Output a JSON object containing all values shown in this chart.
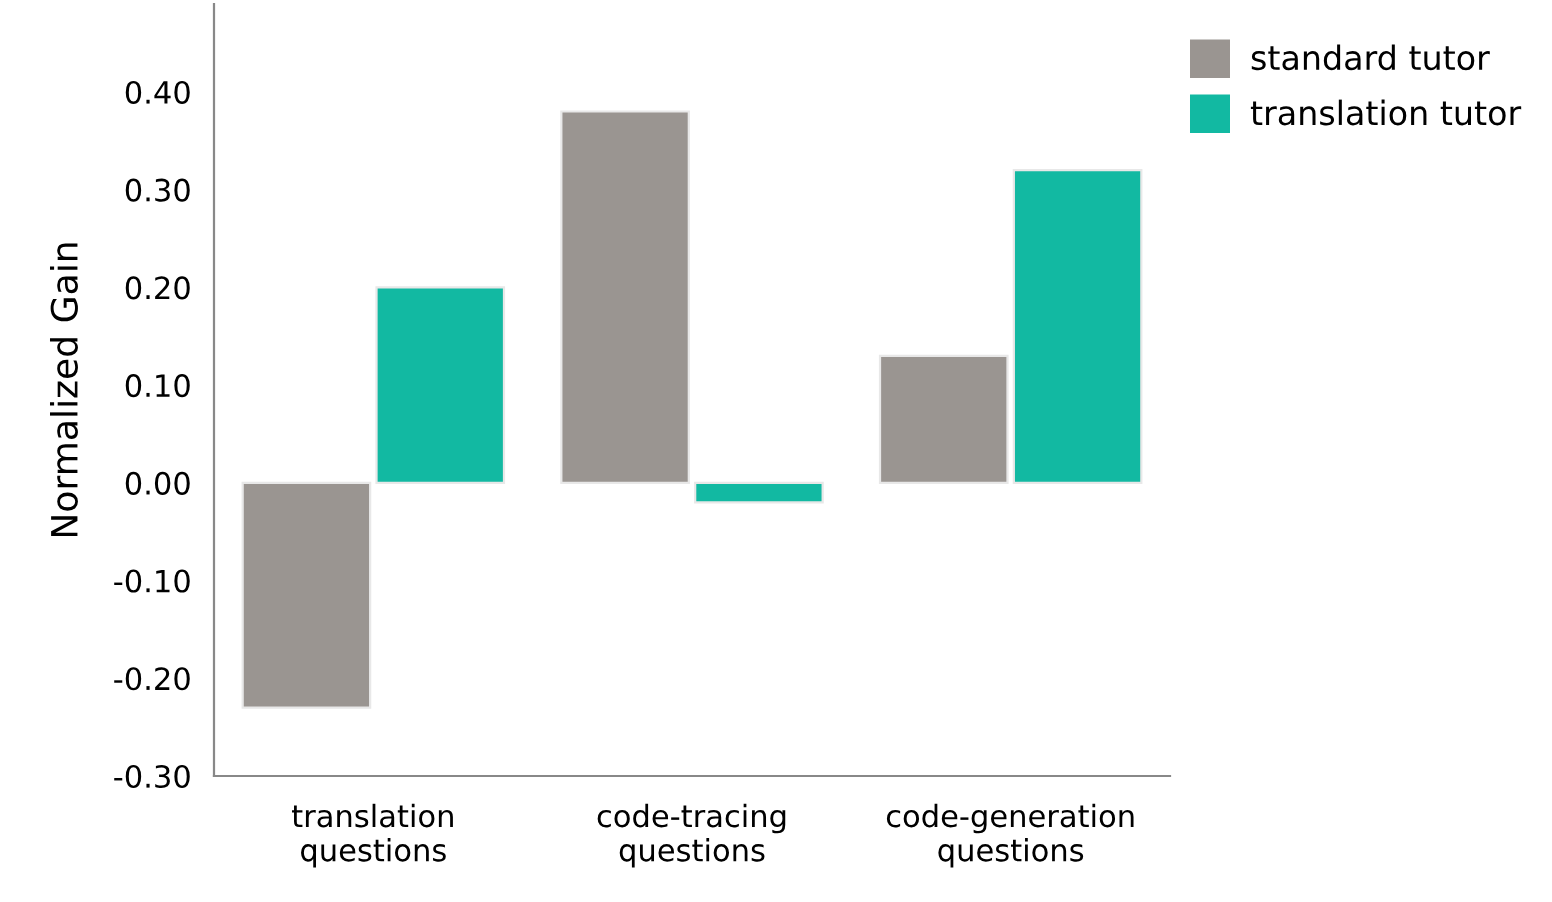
{
  "chart_data": {
    "type": "bar",
    "ylabel": "Normalized Gain",
    "categories": [
      "translation\nquestions",
      "code-tracing\nquestions",
      "code-generation\nquestions"
    ],
    "series": [
      {
        "name": "standard tutor",
        "color": "#9a9591",
        "values": [
          -0.23,
          0.38,
          0.13
        ]
      },
      {
        "name": "translation tutor",
        "color": "#12b9a2",
        "values": [
          0.2,
          -0.02,
          0.32
        ]
      }
    ],
    "ylim": [
      -0.3,
      0.49
    ],
    "yticks": [
      {
        "value": -0.3,
        "label": "-0.30"
      },
      {
        "value": -0.2,
        "label": "-0.20"
      },
      {
        "value": -0.1,
        "label": "-0.10"
      },
      {
        "value": 0,
        "label": "0.00"
      },
      {
        "value": 0.1,
        "label": "0.10"
      },
      {
        "value": 0.2,
        "label": "0.20"
      },
      {
        "value": 0.3,
        "label": "0.30"
      },
      {
        "value": 0.4,
        "label": "0.40"
      }
    ],
    "grid": false,
    "legend": "top right"
  }
}
